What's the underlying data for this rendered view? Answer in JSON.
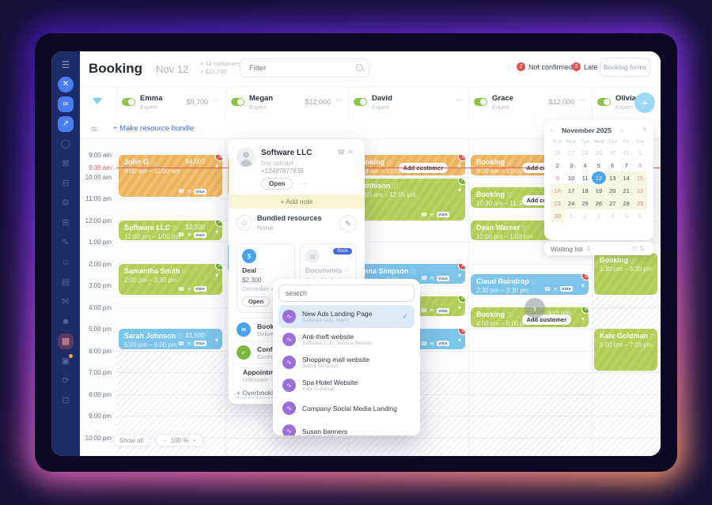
{
  "colors": {
    "accent_blue": "#4a7df0",
    "selected_day": "#4aa4e8",
    "card_orange": "#ecb35c",
    "card_green": "#b2cc55",
    "card_blue": "#7cc4ea",
    "alert_red": "#e05252",
    "confirm_green": "#6fae2f",
    "purple_icon": "#9b6fd8"
  },
  "icons": {
    "info": "ⓘ",
    "chevron_down": "▾",
    "chevron_left": "‹",
    "chevron_right": "›",
    "check": "✓",
    "dots": "⋯",
    "phone": "☎",
    "signal": "≋",
    "close": "✕",
    "plus": "+",
    "minus": "−",
    "pencil": "✎",
    "layers": "≋",
    "mail": "✉",
    "calendar": "▦",
    "swirl": "∿",
    "target": "⊙",
    "updown": "⇅"
  },
  "header": {
    "title": "Booking",
    "date": "Nov 12",
    "customers_tag": "+ 12 customers",
    "revenue_tag": "+ $21,700",
    "filter_placeholder": "Filter",
    "not_confirmed_count": "2",
    "not_confirmed_label": "Not confirmed",
    "late_count": "3",
    "late_label": "Late",
    "booking_forms_label": "Booking forms"
  },
  "bundle_link": "+ Make resource bundle",
  "sidebar": {
    "items": [
      {
        "name": "menu-icon",
        "glyph": "☰",
        "variant": "top"
      },
      {
        "name": "close-button",
        "glyph": "✕",
        "variant": "close"
      },
      {
        "name": "link-button",
        "glyph": "∞",
        "variant": "blue"
      },
      {
        "name": "share-button",
        "glyph": "↗",
        "variant": "blue"
      },
      {
        "name": "chat-icon",
        "glyph": "◯"
      },
      {
        "name": "messages-icon",
        "glyph": "⊠"
      },
      {
        "name": "archive-icon",
        "glyph": "⊟"
      },
      {
        "name": "settings-icon",
        "glyph": "⚙"
      },
      {
        "name": "billing-icon",
        "glyph": "⊞"
      },
      {
        "name": "notes-icon",
        "glyph": "✎"
      },
      {
        "name": "contacts-icon",
        "glyph": "☺"
      },
      {
        "name": "reports-icon",
        "glyph": "▤"
      },
      {
        "name": "mail-icon",
        "glyph": "✉"
      },
      {
        "name": "profile-icon",
        "glyph": "☻"
      },
      {
        "name": "calendar-icon",
        "glyph": "▦",
        "variant": "active"
      },
      {
        "name": "bookings-icon",
        "glyph": "▣",
        "variant": "dot"
      },
      {
        "name": "history-icon",
        "glyph": "⟳"
      },
      {
        "name": "apps-icon",
        "glyph": "⊡"
      }
    ]
  },
  "resources": [
    {
      "name": "Emma",
      "role": "Expert",
      "price": "$9,700"
    },
    {
      "name": "Megan",
      "role": "Expert",
      "price": "$12,000"
    },
    {
      "name": "David",
      "role": "Expert",
      "price": ""
    },
    {
      "name": "Grace",
      "role": "Expert",
      "price": "$12,000"
    },
    {
      "name": "Olivia",
      "role": "Expert",
      "price": ""
    }
  ],
  "timeline": {
    "times": [
      "9:00 am",
      "10:00 am",
      "11:00 am",
      "12:00 pm",
      "1:00 pm",
      "2:00 pm",
      "3:00 pm",
      "4:00 pm",
      "5:00 pm",
      "6:00 pm",
      "7:00 pm",
      "8:00 pm",
      "9:00 pm",
      "10:00 pm"
    ],
    "current_time": "9:35 am"
  },
  "cards": [
    {
      "col": 0,
      "s": 0,
      "d": 2,
      "color": "orange",
      "title": "John G",
      "time": "9:00 am – 11:00 am",
      "price": "$4,000",
      "badge": "1",
      "icons": true,
      "chevron": true
    },
    {
      "col": 0,
      "s": 3,
      "d": 1,
      "color": "green",
      "title": "Software LLC",
      "time": "12:00 pm – 1:00 pm",
      "price": "$2,200",
      "badge": "check",
      "icons": true,
      "chevron": true
    },
    {
      "col": 0,
      "s": 5,
      "d": 1.5,
      "color": "green",
      "title": "Samantha Smith",
      "time": "2:00 pm – 3:30 pm",
      "badge": "check",
      "icons": true,
      "chevron": true
    },
    {
      "col": 0,
      "s": 8,
      "d": 1,
      "color": "blue",
      "title": "Sarah Johnson",
      "time": "5:00 pm – 6:00 pm",
      "price": "$1,500",
      "icons": true,
      "chevron": true
    },
    {
      "col": 1,
      "s": 0,
      "d": 2,
      "color": "orange",
      "title": "",
      "time": ""
    },
    {
      "col": 1,
      "s": 4,
      "d": 1.5,
      "color": "blue",
      "title": "",
      "time": ""
    },
    {
      "col": 2,
      "s": 0,
      "d": 1,
      "color": "orange",
      "title": "Booking",
      "time": "9:00 am – 10:00 am",
      "badge": "1",
      "chevron": true,
      "action": "Add customer"
    },
    {
      "col": 2,
      "s": 1.08,
      "d": 2,
      "color": "green",
      "title": "Smithison",
      "time": "10:05 am – 12:05 pm",
      "badge": "check",
      "icons": true,
      "chevron": true
    },
    {
      "col": 2,
      "s": 5,
      "d": 1,
      "color": "blue",
      "title": "Jenna Simpson",
      "time": "2:00 pm – 3:00 pm",
      "badge": "1",
      "icons": true,
      "chevron": true
    },
    {
      "col": 2,
      "s": 6.5,
      "d": 1,
      "color": "green",
      "title": "",
      "time": "",
      "badge": "check",
      "icons": true,
      "chevron": true
    },
    {
      "col": 2,
      "s": 8,
      "d": 1,
      "color": "blue",
      "title": "",
      "time": "",
      "badge": "1",
      "icons": true,
      "chevron": true
    },
    {
      "col": 3,
      "s": 0,
      "d": 1,
      "color": "orange",
      "title": "Booking",
      "time": "9:00 am – 10:00 am",
      "badge": "1",
      "chevron": true,
      "action": "Add customer"
    },
    {
      "col": 3,
      "s": 1.5,
      "d": 1,
      "color": "green",
      "title": "Booking",
      "time": "10:30 am – 11:30 am",
      "badge": "check",
      "chevron": true,
      "action": "Add customer"
    },
    {
      "col": 3,
      "s": 3,
      "d": 1,
      "color": "green",
      "title": "Dean Warner",
      "time": "12:00 pm – 1:00 pm",
      "icons": true
    },
    {
      "col": 3,
      "s": 5.5,
      "d": 1,
      "color": "blue",
      "title": "Claud Raindrop",
      "time": "2:30 pm – 3:30 pm",
      "badge": "1",
      "icons": true,
      "chevron": true
    },
    {
      "col": 3,
      "s": 7,
      "d": 1,
      "color": "green",
      "title": "Booking",
      "time": "4:00 pm – 5:00 pm",
      "price": "$12,000",
      "badge": "check",
      "chevron": true,
      "action": "Add customer"
    },
    {
      "col": 4,
      "s": 4.5,
      "d": 2,
      "color": "green",
      "title": "Booking",
      "time": "1:30 pm – 3:30 pm"
    },
    {
      "col": 4,
      "s": 8,
      "d": 2,
      "color": "green",
      "title": "Kate Goldman",
      "time": "5:00 pm – 7:00 pm"
    }
  ],
  "popup": {
    "title": "Software LLC",
    "subtitle": "first contact",
    "phone": "+12487877839",
    "open_label": "Open",
    "add_note": "+ Add note",
    "bundled_title": "Bundled resources",
    "bundled_value": "None",
    "deal": {
      "label": "Deal",
      "amount": "$2,300",
      "date": "December 4",
      "open_label": "Open"
    },
    "documents": {
      "label": "Documents",
      "value": "Not added",
      "action": "Add",
      "badge": "Soon"
    },
    "rows": [
      {
        "label": "Booking confirmation",
        "value": "Delivered",
        "icon": "chat"
      },
      {
        "label": "Confirmation",
        "value": "Confirmed",
        "icon": "check"
      },
      {
        "label": "Appointment",
        "value": "Unknown",
        "icon": "cal"
      }
    ],
    "overbooking": "+ Overbooking"
  },
  "dropdown": {
    "search_placeholder": "search",
    "items": [
      {
        "title": "New Ads Landing Page",
        "subtitle": "Software LLC, Harry",
        "selected": true
      },
      {
        "title": "Anti-theft website",
        "subtitle": "Software LLC, Jessica Benson"
      },
      {
        "title": "Shopping mall website",
        "subtitle": "Jenna Simpson"
      },
      {
        "title": "Spa Hotel Website",
        "subtitle": "Kate Goldman"
      },
      {
        "title": "Company Social Media Landing",
        "subtitle": ""
      },
      {
        "title": "Susan banners",
        "subtitle": ""
      }
    ]
  },
  "mini_calendar": {
    "title": "November 2025",
    "weekdays": [
      "Sun",
      "Mon",
      "Tue",
      "Wed",
      "Thu",
      "Fri",
      "Sat"
    ],
    "days": [
      {
        "n": 26,
        "c": "d"
      },
      {
        "n": 27,
        "c": "d"
      },
      {
        "n": 28,
        "c": "d"
      },
      {
        "n": 29,
        "c": "d"
      },
      {
        "n": 30,
        "c": "d"
      },
      {
        "n": 31,
        "c": "d"
      },
      {
        "n": 1,
        "c": "d"
      },
      {
        "n": 2,
        "c": ""
      },
      {
        "n": 3,
        "c": ""
      },
      {
        "n": 4,
        "c": ""
      },
      {
        "n": 5,
        "c": ""
      },
      {
        "n": 6,
        "c": ""
      },
      {
        "n": 7,
        "c": ""
      },
      {
        "n": 8,
        "c": "r"
      },
      {
        "n": 9,
        "c": "r"
      },
      {
        "n": 10,
        "c": ""
      },
      {
        "n": 11,
        "c": ""
      },
      {
        "n": 12,
        "c": "s"
      },
      {
        "n": 13,
        "c": "t"
      },
      {
        "n": 14,
        "c": "t"
      },
      {
        "n": 15,
        "c": "r t"
      },
      {
        "n": 16,
        "c": "r t"
      },
      {
        "n": 17,
        "c": "t"
      },
      {
        "n": 18,
        "c": "t"
      },
      {
        "n": 19,
        "c": "t"
      },
      {
        "n": 20,
        "c": "t"
      },
      {
        "n": 21,
        "c": "t"
      },
      {
        "n": 22,
        "c": "r t"
      },
      {
        "n": 23,
        "c": "r t"
      },
      {
        "n": 24,
        "c": "t"
      },
      {
        "n": 25,
        "c": "t"
      },
      {
        "n": 26,
        "c": "t"
      },
      {
        "n": 27,
        "c": "t"
      },
      {
        "n": 28,
        "c": "t"
      },
      {
        "n": 29,
        "c": "r t"
      },
      {
        "n": 30,
        "c": "r t"
      },
      {
        "n": 1,
        "c": "d"
      },
      {
        "n": 2,
        "c": "d"
      },
      {
        "n": 3,
        "c": "d"
      },
      {
        "n": 4,
        "c": "d"
      },
      {
        "n": 5,
        "c": "d"
      },
      {
        "n": 6,
        "c": "d"
      }
    ]
  },
  "waiting_list": {
    "label": "Waiting list",
    "count": "1"
  },
  "footer": {
    "show_all": "Show all",
    "zoom_value": "100 %"
  }
}
